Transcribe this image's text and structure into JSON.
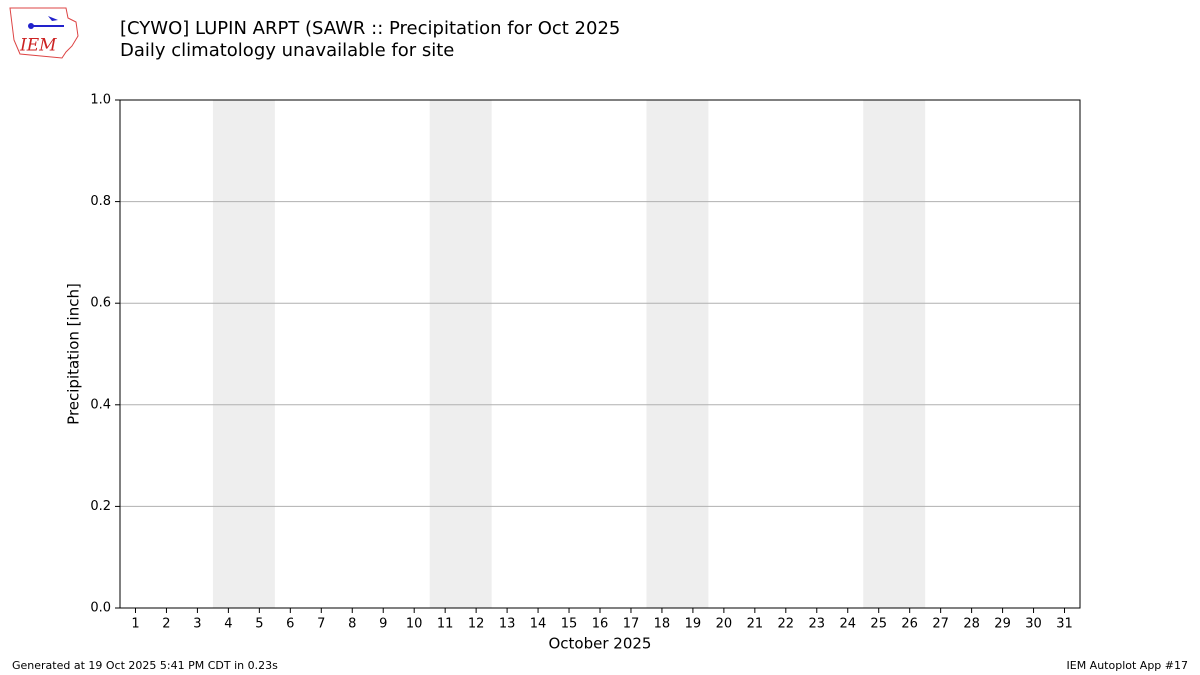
{
  "chart_data": {
    "type": "bar",
    "title": "[CYWO] LUPIN ARPT (SAWR :: Precipitation for Oct 2025",
    "subtitle": "Daily climatology unavailable for site",
    "y_label": "Precipitation [inch]",
    "x_label": "October 2025",
    "logo_text": "IEM",
    "footer_left": "Generated at 19 Oct 2025 5:41 PM CDT in 0.23s",
    "footer_right": "IEM Autoplot App #17",
    "xlim": [
      0.5,
      31.5
    ],
    "xticks": [
      1,
      2,
      3,
      4,
      5,
      6,
      7,
      8,
      9,
      10,
      11,
      12,
      13,
      14,
      15,
      16,
      17,
      18,
      19,
      20,
      21,
      22,
      23,
      24,
      25,
      26,
      27,
      28,
      29,
      30,
      31
    ],
    "ylim": [
      0,
      1
    ],
    "yticks": [
      {
        "value": 0,
        "label": "0.0"
      },
      0.2,
      0.4,
      0.6,
      0.8,
      {
        "value": 1,
        "label": "1.0"
      }
    ],
    "grid": "y",
    "shaded_spans": [
      [
        3.5,
        5.5
      ],
      [
        10.5,
        12.5
      ],
      [
        17.5,
        19.5
      ],
      [
        24.5,
        26.5
      ]
    ],
    "shade_color": "#eeeeee"
  }
}
